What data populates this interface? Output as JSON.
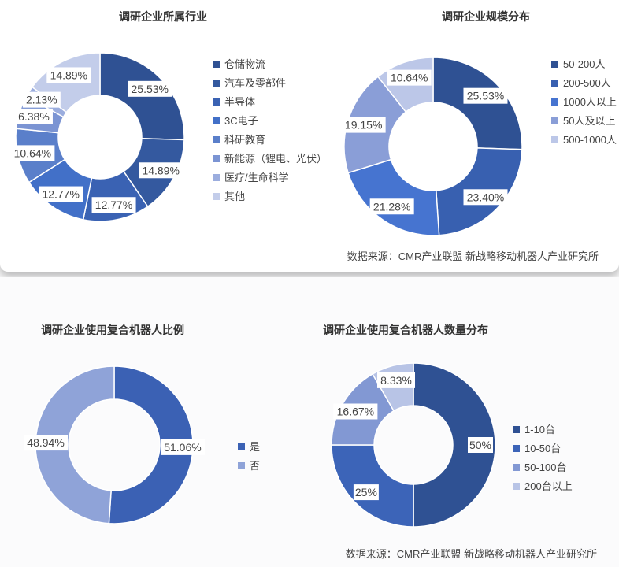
{
  "source_top": "数据来源：CMR产业联盟 新战略移动机器人产业研究所",
  "source_bottom": "数据来源：CMR产业联盟 新战略移动机器人产业研究所",
  "chart_data": [
    {
      "type": "pie",
      "title": "调研企业所属行业",
      "categories": [
        "仓储物流",
        "汽车及零部件",
        "半导体",
        "3C电子",
        "科研教育",
        "新能源（锂电、光伏）",
        "医疗/生命科学",
        "其他"
      ],
      "values": [
        25.53,
        14.89,
        12.77,
        12.77,
        10.64,
        6.38,
        2.13,
        14.89
      ],
      "labels": [
        "25.53%",
        "14.89%",
        "12.77%",
        "12.77%",
        "10.64%",
        "6.38%",
        "2.13%",
        "14.89%"
      ],
      "colors": [
        "#2f5193",
        "#34599f",
        "#3a62b3",
        "#4270c8",
        "#5a7fca",
        "#7b94d3",
        "#9badde",
        "#c3cdea"
      ],
      "legend": "right"
    },
    {
      "type": "pie",
      "title": "调研企业规模分布",
      "categories": [
        "50-200人",
        "200-500人",
        "1000人以上",
        "50人及以上",
        "500-1000人"
      ],
      "values": [
        25.53,
        23.4,
        21.28,
        19.15,
        10.64
      ],
      "labels": [
        "25.53%",
        "23.40%",
        "21.28%",
        "19.15%",
        "10.64%"
      ],
      "colors": [
        "#2f5193",
        "#3860b0",
        "#4674d0",
        "#8a9ed7",
        "#bcc7e8"
      ],
      "legend": "right"
    },
    {
      "type": "pie",
      "title": "调研企业使用复合机器人比例",
      "categories": [
        "是",
        "否"
      ],
      "values": [
        51.06,
        48.94
      ],
      "labels": [
        "51.06%",
        "48.94%"
      ],
      "colors": [
        "#3b61b4",
        "#8fa3d8"
      ],
      "legend": "right"
    },
    {
      "type": "pie",
      "title": "调研企业使用复合机器人数量分布",
      "categories": [
        "1-10台",
        "10-50台",
        "50-100台",
        "200台以上"
      ],
      "values": [
        50,
        25,
        16.67,
        8.33
      ],
      "labels": [
        "50%",
        "25%",
        "16.67%",
        "8.33%"
      ],
      "colors": [
        "#2f5193",
        "#3c64b8",
        "#8298d3",
        "#b8c4e6"
      ],
      "legend": "right"
    }
  ]
}
